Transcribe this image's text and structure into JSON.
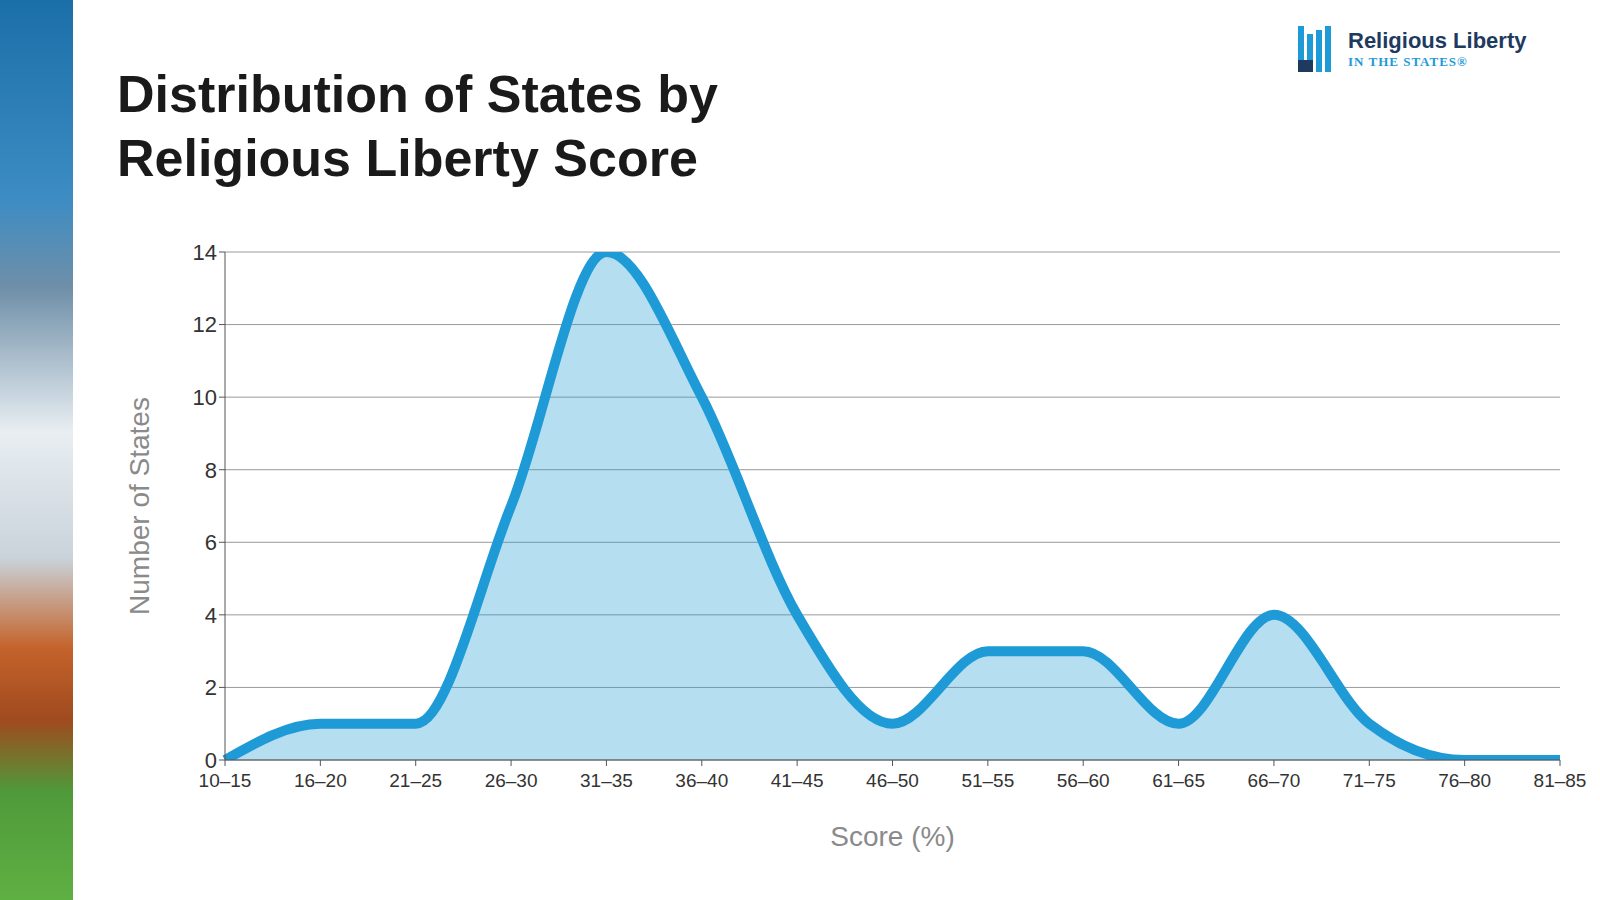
{
  "chart_data": {
    "type": "area",
    "title": "Distribution of States by Religious Liberty Score",
    "annotations": [
      "Religious Liberty",
      "IN THE STATES®"
    ],
    "x_label": "Score (%)",
    "y_label": "Number of States",
    "categories": [
      "10–15",
      "16–20",
      "21–25",
      "26–30",
      "31–35",
      "36–40",
      "41–45",
      "46–50",
      "51–55",
      "56–60",
      "61–65",
      "66–70",
      "71–75",
      "76–80",
      "81–85"
    ],
    "values": [
      0,
      1,
      1,
      7,
      14,
      10,
      4,
      1,
      3,
      3,
      1,
      4,
      1,
      0,
      0
    ],
    "color": "#1e9ad6",
    "ylim": [
      0,
      14
    ],
    "yticks": [
      0,
      2,
      4,
      6,
      8,
      10,
      12,
      14
    ],
    "grid": true
  }
}
